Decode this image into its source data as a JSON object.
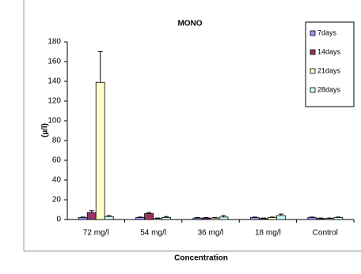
{
  "chart_data": {
    "type": "bar",
    "title": "MONO",
    "x_label": "Concentration",
    "y_label": "(µ/l)",
    "categories": [
      "72 mg/l",
      "54 mg/l",
      "36 mg/l",
      "18 mg/l",
      "Control"
    ],
    "series": [
      {
        "name": "7days",
        "color": "#9999ff",
        "values": [
          2,
          2,
          1.5,
          2,
          2
        ],
        "errors": [
          0.5,
          0.5,
          0.5,
          0.5,
          0.5
        ]
      },
      {
        "name": "14days",
        "color": "#993366",
        "values": [
          7,
          6,
          1.5,
          1,
          1
        ],
        "errors": [
          2,
          1,
          0.5,
          0.5,
          0.5
        ]
      },
      {
        "name": "21days",
        "color": "#ffffcc",
        "values": [
          139,
          1,
          1.5,
          2,
          1
        ],
        "errors": [
          31,
          0.5,
          0.5,
          0.5,
          0.5
        ]
      },
      {
        "name": "28days",
        "color": "#ccffff",
        "values": [
          3,
          2,
          2.5,
          4,
          2
        ],
        "errors": [
          1,
          1,
          1.5,
          1.5,
          0.5
        ]
      }
    ],
    "ylim": [
      0,
      180
    ],
    "yticks": [
      0,
      20,
      40,
      60,
      80,
      100,
      120,
      140,
      160,
      180
    ],
    "grid": false
  }
}
